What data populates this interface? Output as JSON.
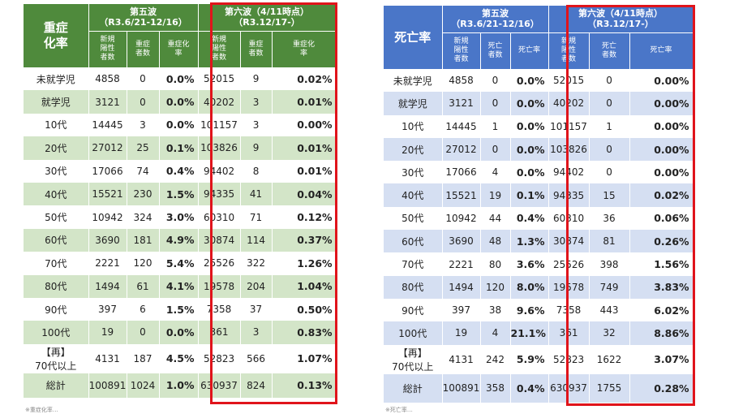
{
  "left": {
    "corner": "重症\n化率",
    "wave5_title": "第五波\n（R3.6/21-12/16）",
    "wave6_title": "第六波（4/11時点）\n（R3.12/17-）",
    "sub_headers": [
      "新規\n陽性\n者数",
      "重症\n者数",
      "重症化\n率",
      "新規\n陽性\n者数",
      "重症\n者数",
      "重症化\n率"
    ],
    "rows": [
      {
        "label": "未就学児",
        "cells": [
          "4858",
          "0",
          "0.0%",
          "52015",
          "9",
          "0.02%"
        ]
      },
      {
        "label": "就学児",
        "cells": [
          "3121",
          "0",
          "0.0%",
          "40202",
          "3",
          "0.01%"
        ]
      },
      {
        "label": "10代",
        "cells": [
          "14445",
          "3",
          "0.0%",
          "101157",
          "3",
          "0.00%"
        ]
      },
      {
        "label": "20代",
        "cells": [
          "27012",
          "25",
          "0.1%",
          "103826",
          "9",
          "0.01%"
        ]
      },
      {
        "label": "30代",
        "cells": [
          "17066",
          "74",
          "0.4%",
          "94402",
          "8",
          "0.01%"
        ]
      },
      {
        "label": "40代",
        "cells": [
          "15521",
          "230",
          "1.5%",
          "94335",
          "41",
          "0.04%"
        ]
      },
      {
        "label": "50代",
        "cells": [
          "10942",
          "324",
          "3.0%",
          "60310",
          "71",
          "0.12%"
        ]
      },
      {
        "label": "60代",
        "cells": [
          "3690",
          "181",
          "4.9%",
          "30874",
          "114",
          "0.37%"
        ]
      },
      {
        "label": "70代",
        "cells": [
          "2221",
          "120",
          "5.4%",
          "25526",
          "322",
          "1.26%"
        ]
      },
      {
        "label": "80代",
        "cells": [
          "1494",
          "61",
          "4.1%",
          "19578",
          "204",
          "1.04%"
        ]
      },
      {
        "label": "90代",
        "cells": [
          "397",
          "6",
          "1.5%",
          "7358",
          "37",
          "0.50%"
        ]
      },
      {
        "label": "100代",
        "cells": [
          "19",
          "0",
          "0.0%",
          "361",
          "3",
          "0.83%"
        ]
      },
      {
        "label": "【再】\n70代以上",
        "cells": [
          "4131",
          "187",
          "4.5%",
          "52823",
          "566",
          "1.07%"
        ]
      },
      {
        "label": "総計",
        "cells": [
          "100891",
          "1024",
          "1.0%",
          "630937",
          "824",
          "0.13%"
        ]
      }
    ],
    "footnote": "※重症化率…"
  },
  "right": {
    "corner": "死亡率",
    "wave5_title": "第五波\n（R3.6/21-12/16）",
    "wave6_title": "第六波（4/11時点）\n（R3.12/17-）",
    "sub_headers": [
      "新規\n陽性\n者数",
      "死亡\n者数",
      "死亡率",
      "新規\n陽性\n者数",
      "死亡\n者数",
      "死亡率"
    ],
    "rows": [
      {
        "label": "未就学児",
        "cells": [
          "4858",
          "0",
          "0.0%",
          "52015",
          "0",
          "0.00%"
        ]
      },
      {
        "label": "就学児",
        "cells": [
          "3121",
          "0",
          "0.0%",
          "40202",
          "0",
          "0.00%"
        ]
      },
      {
        "label": "10代",
        "cells": [
          "14445",
          "1",
          "0.0%",
          "101157",
          "1",
          "0.00%"
        ]
      },
      {
        "label": "20代",
        "cells": [
          "27012",
          "0",
          "0.0%",
          "103826",
          "0",
          "0.00%"
        ]
      },
      {
        "label": "30代",
        "cells": [
          "17066",
          "4",
          "0.0%",
          "94402",
          "0",
          "0.00%"
        ]
      },
      {
        "label": "40代",
        "cells": [
          "15521",
          "19",
          "0.1%",
          "94335",
          "15",
          "0.02%"
        ]
      },
      {
        "label": "50代",
        "cells": [
          "10942",
          "44",
          "0.4%",
          "60310",
          "36",
          "0.06%"
        ]
      },
      {
        "label": "60代",
        "cells": [
          "3690",
          "48",
          "1.3%",
          "30874",
          "81",
          "0.26%"
        ]
      },
      {
        "label": "70代",
        "cells": [
          "2221",
          "80",
          "3.6%",
          "25526",
          "398",
          "1.56%"
        ]
      },
      {
        "label": "80代",
        "cells": [
          "1494",
          "120",
          "8.0%",
          "19578",
          "749",
          "3.83%"
        ]
      },
      {
        "label": "90代",
        "cells": [
          "397",
          "38",
          "9.6%",
          "7358",
          "443",
          "6.02%"
        ]
      },
      {
        "label": "100代",
        "cells": [
          "19",
          "4",
          "21.1%",
          "361",
          "32",
          "8.86%"
        ]
      },
      {
        "label": "【再】\n70代以上",
        "cells": [
          "4131",
          "242",
          "5.9%",
          "52823",
          "1622",
          "3.07%"
        ]
      },
      {
        "label": "総計",
        "cells": [
          "100891",
          "358",
          "0.4%",
          "630937",
          "1755",
          "0.28%"
        ]
      }
    ],
    "footnote": "※死亡率…"
  },
  "colors": {
    "left_header": "#4f8a3c",
    "left_stripe": "#d3e5c8",
    "right_header": "#4a76c8",
    "right_stripe": "#d5dff2",
    "highlight_border": "#e0141b"
  }
}
